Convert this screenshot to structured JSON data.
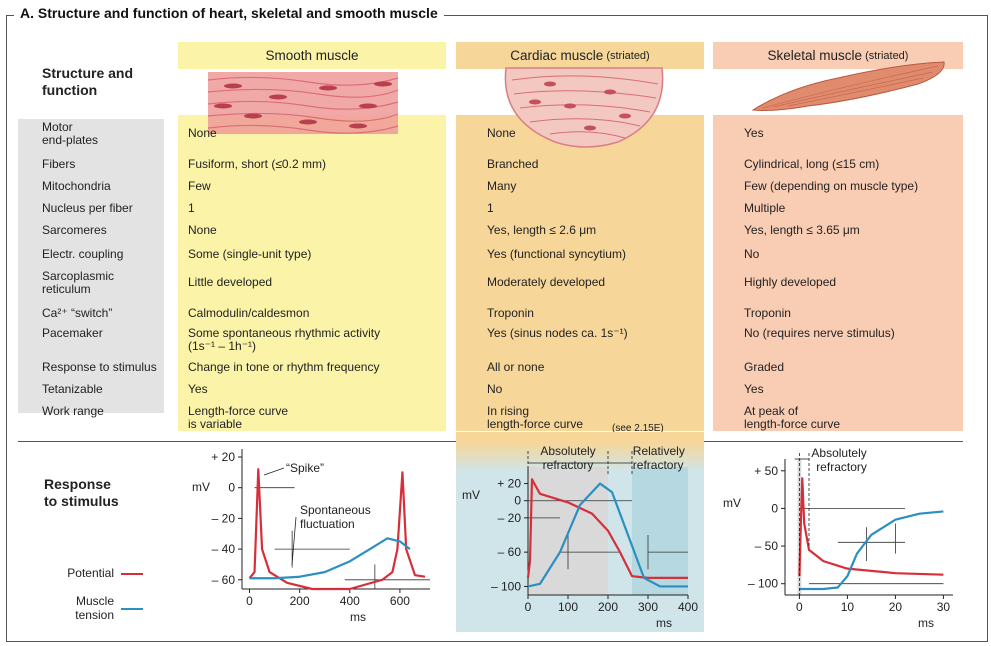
{
  "title": "A.  Structure and function of heart, skeletal and smooth muscle",
  "section_label": "Structure and function",
  "columns": {
    "smooth": "Smooth muscle",
    "cardiac": "Cardiac muscle",
    "cardiac_note": "(striated)",
    "skeletal": "Skeletal muscle",
    "skeletal_note": "(striated)"
  },
  "rows": [
    {
      "label": "Motor\nend-plates",
      "smooth": "None",
      "cardiac": "None",
      "skeletal": "Yes"
    },
    {
      "label": "Fibers",
      "smooth": "Fusiform, short (≤0.2 mm)",
      "cardiac": "Branched",
      "skeletal": "Cylindrical, long (≤15 cm)"
    },
    {
      "label": "Mitochondria",
      "smooth": "Few",
      "cardiac": "Many",
      "skeletal": "Few (depending on muscle type)"
    },
    {
      "label": "Nucleus per fiber",
      "smooth": "1",
      "cardiac": "1",
      "skeletal": "Multiple"
    },
    {
      "label": "Sarcomeres",
      "smooth": "None",
      "cardiac": "Yes, length ≤ 2.6 μm",
      "skeletal": "Yes, length ≤ 3.65 μm"
    },
    {
      "label": "Electr. coupling",
      "smooth": "Some (single-unit type)",
      "cardiac": "Yes (functional syncytium)",
      "skeletal": "No"
    },
    {
      "label": "Sarcoplasmic\nreticulum",
      "smooth": "Little developed",
      "cardiac": "Moderately developed",
      "skeletal": "Highly developed"
    },
    {
      "label": "Ca²⁺ “switch”",
      "smooth": "Calmodulin/caldesmon",
      "cardiac": "Troponin",
      "skeletal": "Troponin"
    },
    {
      "label": "Pacemaker",
      "smooth": "Some spontaneous rhythmic activity\n(1s⁻¹ – 1h⁻¹)",
      "cardiac": "Yes (sinus nodes ca. 1s⁻¹)",
      "skeletal": "No (requires nerve stimulus)"
    },
    {
      "label": "Response to stimulus",
      "smooth": "Change in tone or rhythm frequency",
      "cardiac": "All or none",
      "skeletal": "Graded"
    },
    {
      "label": "Tetanizable",
      "smooth": "Yes",
      "cardiac": "No",
      "skeletal": "Yes"
    },
    {
      "label": "Work range",
      "smooth": "Length-force curve\nis variable",
      "cardiac": "In rising\nlength-force curve",
      "skeletal": "At peak of\nlength-force curve"
    }
  ],
  "cardiac_ref": "(see 2.15E)",
  "response_label": "Response\nto stimulus",
  "legend": {
    "potential": "Potential",
    "tension": "Muscle\ntension",
    "potential_color": "#d62f3a",
    "tension_color": "#2b8fbf"
  },
  "chart_data": [
    {
      "type": "line",
      "name": "smooth",
      "yunit": "mV",
      "xlabel": "ms",
      "yticks": [
        "+ 20",
        "0",
        "– 20",
        "– 40",
        "– 60"
      ],
      "xticks": [
        "0",
        "200",
        "400",
        "600"
      ],
      "annotations": [
        "“Spike”",
        "Spontaneous\nfluctuation"
      ],
      "series": [
        {
          "name": "Potential",
          "x": [
            0,
            20,
            35,
            50,
            80,
            150,
            250,
            400,
            530,
            570,
            590,
            610,
            625,
            660,
            700
          ],
          "y": [
            -59,
            -55,
            12,
            -40,
            -55,
            -62,
            -66,
            -66,
            -60,
            -55,
            -40,
            10,
            -40,
            -57,
            -58
          ]
        },
        {
          "name": "Muscle tension",
          "x": [
            0,
            100,
            200,
            300,
            400,
            500,
            550,
            600,
            640
          ],
          "y": [
            -59,
            -59,
            -58,
            -55,
            -48,
            -38,
            -33,
            -35,
            -40
          ]
        }
      ]
    },
    {
      "type": "line",
      "name": "cardiac",
      "yunit": "mV",
      "xlabel": "ms",
      "yticks": [
        "+ 20",
        "0",
        "– 20",
        "– 60",
        "– 100"
      ],
      "xticks": [
        "0",
        "100",
        "200",
        "300",
        "400"
      ],
      "annotations": [
        "Absolutely\nrefractory",
        "Relatively\nrefractory"
      ],
      "series": [
        {
          "name": "Potential",
          "x": [
            0,
            5,
            10,
            30,
            100,
            160,
            200,
            230,
            260,
            300,
            400
          ],
          "y": [
            -90,
            -70,
            25,
            8,
            -2,
            -15,
            -35,
            -60,
            -88,
            -90,
            -90
          ]
        },
        {
          "name": "Muscle tension",
          "x": [
            0,
            30,
            80,
            130,
            180,
            210,
            250,
            290,
            330,
            400
          ],
          "y": [
            -100,
            -97,
            -60,
            -5,
            20,
            10,
            -40,
            -90,
            -100,
            -100
          ]
        }
      ]
    },
    {
      "type": "line",
      "name": "skeletal",
      "yunit": "mV",
      "xlabel": "ms",
      "yticks": [
        "+ 50",
        "0",
        "– 50",
        "– 100"
      ],
      "xticks": [
        "0",
        "10",
        "20",
        "30"
      ],
      "annotations": [
        "Absolutely\nrefractory"
      ],
      "series": [
        {
          "name": "Potential",
          "x": [
            0,
            0.3,
            0.6,
            1,
            2,
            5,
            10,
            20,
            30
          ],
          "y": [
            -90,
            -20,
            40,
            -20,
            -55,
            -70,
            -80,
            -86,
            -88
          ]
        },
        {
          "name": "Muscle tension",
          "x": [
            0,
            5,
            8,
            10,
            12,
            15,
            20,
            25,
            30
          ],
          "y": [
            -107,
            -107,
            -105,
            -90,
            -60,
            -35,
            -15,
            -7,
            -4
          ]
        }
      ]
    }
  ]
}
